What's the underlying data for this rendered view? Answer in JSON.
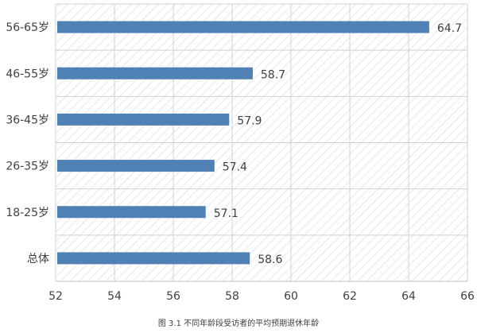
{
  "chart_data": {
    "type": "bar",
    "orientation": "horizontal",
    "categories": [
      "56-65岁",
      "46-55岁",
      "36-45岁",
      "26-35岁",
      "18-25岁",
      "总体"
    ],
    "values": [
      64.7,
      58.7,
      57.9,
      57.4,
      57.1,
      58.6
    ],
    "data_labels": [
      "64.7",
      "58.7",
      "57.9",
      "57.4",
      "57.1",
      "58.6"
    ],
    "xlim": [
      52,
      66
    ],
    "x_ticks": [
      "52",
      "54",
      "56",
      "58",
      "60",
      "62",
      "64",
      "66"
    ],
    "grid": true,
    "background_pattern": "diagonal-hatch",
    "bar_color": "#4f81b4",
    "caption": "图 3.1 不同年龄段受访者的平均预期退休年龄"
  }
}
